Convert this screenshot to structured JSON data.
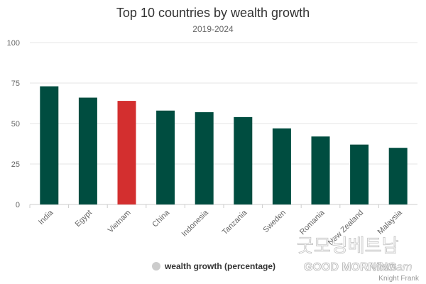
{
  "chart_data": {
    "type": "bar",
    "title": "Top 10 countries by wealth growth",
    "subtitle": "2019-2024",
    "categories": [
      "India",
      "Egypt",
      "Vietnam",
      "China",
      "Indonesia",
      "Tanzania",
      "Sweden",
      "Romania",
      "New Zealand",
      "Malaysia"
    ],
    "series": [
      {
        "name": "wealth growth (percentage)",
        "values": [
          73,
          66,
          64,
          58,
          57,
          54,
          47,
          42,
          37,
          35
        ]
      }
    ],
    "highlight_index": 2,
    "ylim": [
      0,
      100
    ],
    "yticks": [
      0,
      25,
      50,
      75,
      100
    ],
    "grid": true,
    "legend_position": "bottom-center",
    "colors": {
      "bar": "#004d40",
      "highlight": "#d32f2f",
      "legend_marker": "#cccccc",
      "grid": "#e6e6e6"
    }
  },
  "source": "Knight Frank",
  "watermark": {
    "korean": "굿모닝베트남",
    "main": "GOOD MORNING",
    "script": "Vietnam"
  }
}
